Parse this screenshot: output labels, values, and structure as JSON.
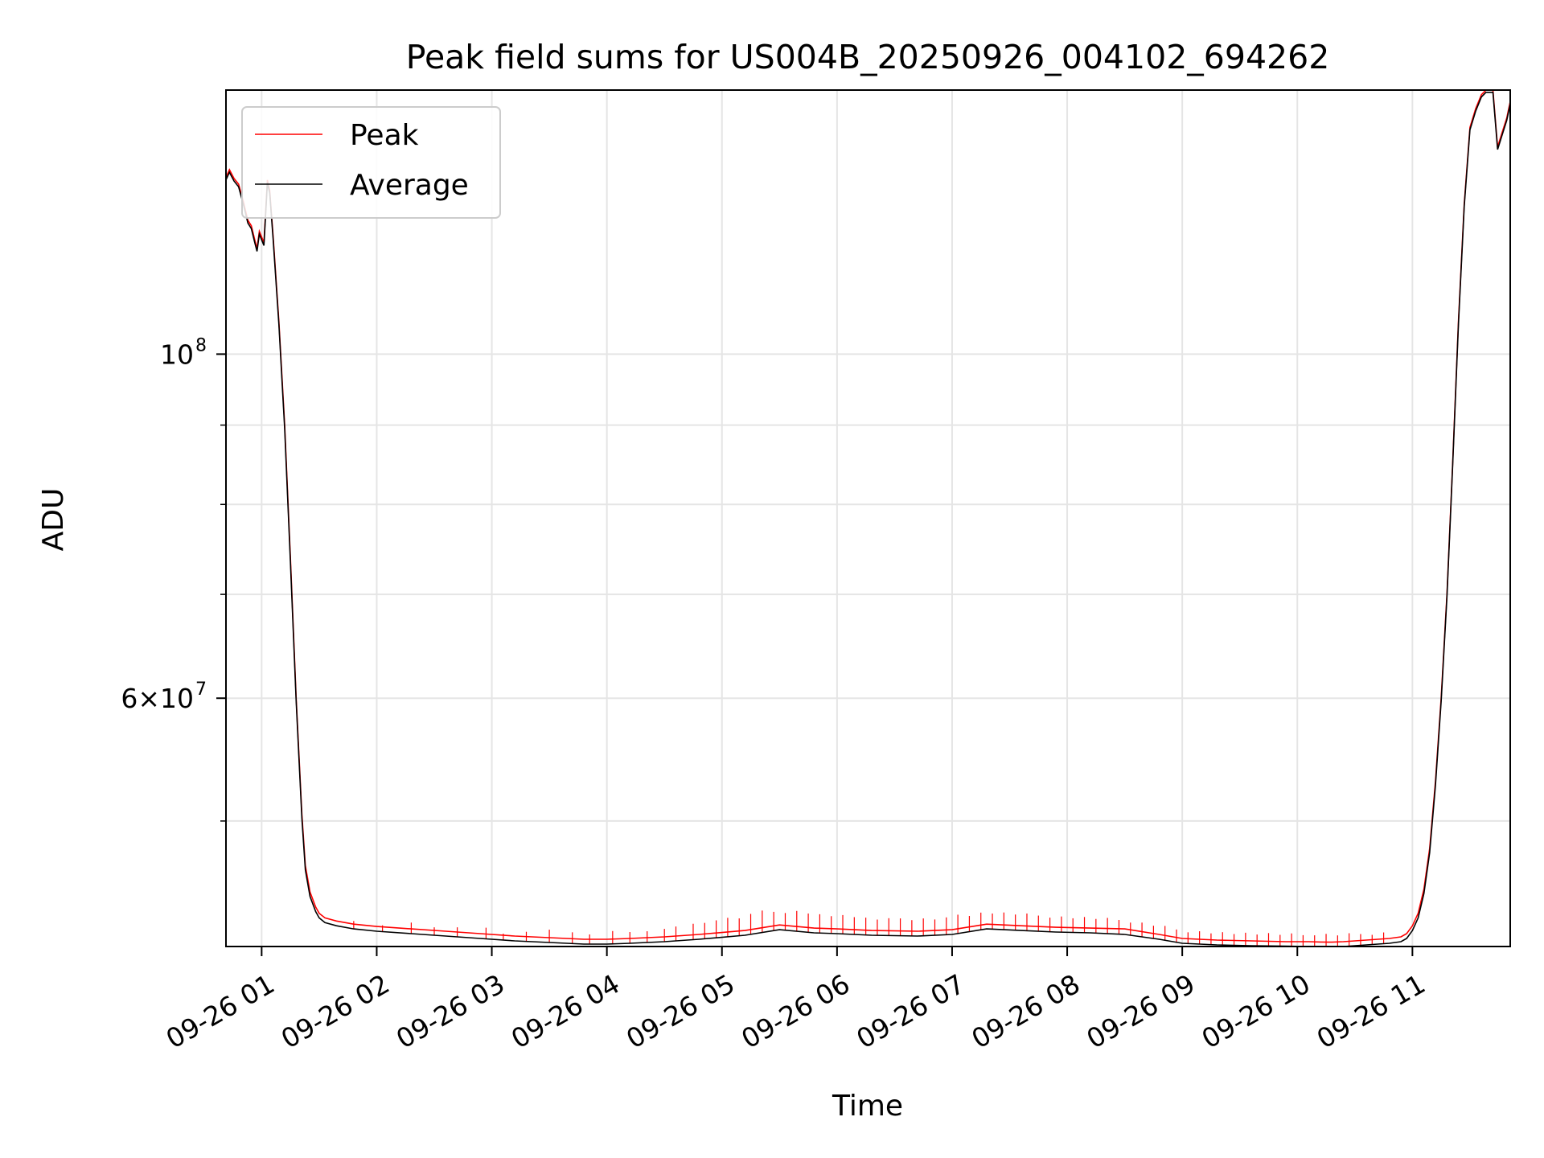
{
  "chart_data": {
    "type": "line",
    "title": "Peak field sums for US004B_20250926_004102_694262",
    "xlabel": "Time",
    "ylabel": "ADU",
    "yscale": "log",
    "x_unit": "hours after 09-26 00:00",
    "xlim": [
      0.69,
      11.85
    ],
    "ylim": [
      41500000,
      148000000
    ],
    "grid": true,
    "legend_position": "upper-left",
    "x_ticks": [
      {
        "value": 1,
        "label": "09-26 01"
      },
      {
        "value": 2,
        "label": "09-26 02"
      },
      {
        "value": 3,
        "label": "09-26 03"
      },
      {
        "value": 4,
        "label": "09-26 04"
      },
      {
        "value": 5,
        "label": "09-26 05"
      },
      {
        "value": 6,
        "label": "09-26 06"
      },
      {
        "value": 7,
        "label": "09-26 07"
      },
      {
        "value": 8,
        "label": "09-26 08"
      },
      {
        "value": 9,
        "label": "09-26 09"
      },
      {
        "value": 10,
        "label": "09-26 10"
      },
      {
        "value": 11,
        "label": "09-26 11"
      }
    ],
    "y_major_ticks": [
      {
        "value": 60000000,
        "mantissa": "6",
        "times": "×",
        "base": "10",
        "exp": "7"
      },
      {
        "value": 100000000,
        "mantissa": "",
        "times": "",
        "base": "10",
        "exp": "8"
      }
    ],
    "y_minor_ticks": [
      50000000,
      70000000,
      80000000,
      90000000
    ],
    "series": [
      {
        "name": "Peak",
        "color": "#ff0000",
        "x": [
          0.69,
          0.72,
          0.76,
          0.8,
          0.84,
          0.88,
          0.91,
          0.94,
          0.96,
          0.98,
          1.02,
          1.05,
          1.07,
          1.1,
          1.15,
          1.2,
          1.25,
          1.3,
          1.35,
          1.38,
          1.42,
          1.47,
          1.5,
          1.55,
          1.65,
          1.8,
          2.0,
          2.3,
          2.6,
          2.9,
          3.2,
          3.5,
          3.8,
          4.0,
          4.2,
          4.5,
          4.8,
          5.2,
          5.5,
          5.8,
          6.0,
          6.3,
          6.7,
          7.0,
          7.3,
          7.6,
          7.9,
          8.2,
          8.5,
          8.8,
          9.0,
          9.3,
          9.6,
          9.9,
          10.1,
          10.2,
          10.3,
          10.4,
          10.5,
          10.6,
          10.7,
          10.8,
          10.9,
          10.95,
          11.0,
          11.05,
          11.1,
          11.15,
          11.2,
          11.25,
          11.3,
          11.35,
          11.4,
          11.45,
          11.5,
          11.55,
          11.6,
          11.64,
          11.67,
          11.7,
          11.74,
          11.78,
          11.82,
          11.85
        ],
        "y": [
          130000000,
          131500000,
          129800000,
          128700000,
          125500000,
          122000000,
          121000000,
          118500000,
          117000000,
          120000000,
          118000000,
          129500000,
          127500000,
          119000000,
          105000000,
          90000000,
          74000000,
          60000000,
          50500000,
          46800000,
          45000000,
          44000000,
          43600000,
          43300000,
          43100000,
          42900000,
          42750000,
          42600000,
          42450000,
          42300000,
          42150000,
          42050000,
          41950000,
          41950000,
          42000000,
          42100000,
          42250000,
          42500000,
          42850000,
          42650000,
          42600000,
          42500000,
          42450000,
          42550000,
          42900000,
          42800000,
          42700000,
          42650000,
          42600000,
          42250000,
          42000000,
          41900000,
          41850000,
          41800000,
          41800000,
          41780000,
          41770000,
          41800000,
          41850000,
          41900000,
          41950000,
          42000000,
          42100000,
          42300000,
          42800000,
          43600000,
          45200000,
          48000000,
          53000000,
          60000000,
          70000000,
          85000000,
          105000000,
          125000000,
          140000000,
          144000000,
          147000000,
          148000000,
          148000000,
          148000000,
          136000000,
          139000000,
          142000000,
          145500000
        ]
      },
      {
        "name": "Average",
        "color": "#000000",
        "x": [
          0.69,
          0.72,
          0.76,
          0.8,
          0.84,
          0.88,
          0.91,
          0.94,
          0.96,
          0.98,
          1.02,
          1.05,
          1.07,
          1.1,
          1.15,
          1.2,
          1.25,
          1.3,
          1.35,
          1.38,
          1.42,
          1.47,
          1.5,
          1.55,
          1.65,
          1.8,
          2.0,
          2.3,
          2.6,
          2.9,
          3.2,
          3.5,
          3.8,
          4.0,
          4.2,
          4.5,
          4.8,
          5.2,
          5.5,
          5.8,
          6.0,
          6.3,
          6.7,
          7.0,
          7.3,
          7.6,
          7.9,
          8.2,
          8.5,
          8.8,
          9.0,
          9.3,
          9.6,
          9.9,
          10.1,
          10.2,
          10.3,
          10.4,
          10.5,
          10.6,
          10.7,
          10.8,
          10.9,
          10.95,
          11.0,
          11.05,
          11.1,
          11.15,
          11.2,
          11.25,
          11.3,
          11.35,
          11.4,
          11.45,
          11.5,
          11.55,
          11.6,
          11.64,
          11.67,
          11.7,
          11.74,
          11.78,
          11.82,
          11.85
        ],
        "y": [
          129500000,
          131000000,
          129300000,
          128200000,
          125000000,
          121500000,
          120500000,
          118000000,
          116500000,
          119500000,
          117500000,
          129000000,
          127000000,
          118500000,
          104500000,
          89500000,
          73500000,
          59700000,
          50200000,
          46500000,
          44700000,
          43700000,
          43300000,
          43000000,
          42800000,
          42600000,
          42450000,
          42300000,
          42150000,
          42000000,
          41850000,
          41750000,
          41650000,
          41650000,
          41700000,
          41800000,
          41950000,
          42200000,
          42550000,
          42350000,
          42300000,
          42200000,
          42150000,
          42250000,
          42600000,
          42500000,
          42400000,
          42350000,
          42250000,
          41950000,
          41700000,
          41600000,
          41550000,
          41520000,
          41500000,
          41490000,
          41480000,
          41500000,
          41550000,
          41600000,
          41650000,
          41700000,
          41800000,
          42000000,
          42500000,
          43300000,
          44900000,
          47700000,
          52700000,
          59700000,
          69700000,
          84700000,
          104500000,
          124500000,
          139500000,
          143500000,
          146500000,
          147500000,
          147500000,
          147500000,
          135500000,
          138500000,
          141500000,
          145000000
        ]
      }
    ],
    "peak_spikes": {
      "note": "Peak exceeds Average by intermittent spikes (ADU above average line)",
      "x": [
        1.8,
        2.05,
        2.3,
        2.5,
        2.7,
        2.95,
        3.1,
        3.3,
        3.5,
        3.7,
        3.85,
        4.05,
        4.2,
        4.35,
        4.5,
        4.6,
        4.75,
        4.85,
        4.95,
        5.05,
        5.15,
        5.25,
        5.35,
        5.45,
        5.55,
        5.65,
        5.75,
        5.85,
        5.95,
        6.05,
        6.15,
        6.25,
        6.35,
        6.45,
        6.55,
        6.65,
        6.75,
        6.85,
        6.95,
        7.05,
        7.15,
        7.25,
        7.35,
        7.45,
        7.55,
        7.65,
        7.75,
        7.85,
        7.95,
        8.05,
        8.15,
        8.25,
        8.35,
        8.45,
        8.55,
        8.65,
        8.75,
        8.85,
        8.95,
        9.05,
        9.15,
        9.25,
        9.35,
        9.45,
        9.55,
        9.65,
        9.75,
        9.85,
        9.95,
        10.05,
        10.15,
        10.25,
        10.35,
        10.45,
        10.55,
        10.65,
        10.75
      ],
      "heights": [
        500000,
        400000,
        700000,
        500000,
        600000,
        700000,
        400000,
        600000,
        800000,
        700000,
        600000,
        800000,
        700000,
        700000,
        800000,
        900000,
        1000000,
        1000000,
        1100000,
        1200000,
        1100000,
        1300000,
        1400000,
        1200000,
        1100000,
        1300000,
        1200000,
        1200000,
        1100000,
        1200000,
        1100000,
        1100000,
        1000000,
        1100000,
        1100000,
        1000000,
        1100000,
        1000000,
        1100000,
        1200000,
        1000000,
        1100000,
        1000000,
        1100000,
        1000000,
        1100000,
        1000000,
        900000,
        1000000,
        900000,
        1000000,
        900000,
        1000000,
        900000,
        800000,
        900000,
        800000,
        900000,
        800000,
        700000,
        800000,
        700000,
        800000,
        700000,
        800000,
        700000,
        800000,
        700000,
        800000,
        700000,
        700000,
        800000,
        700000,
        800000,
        700000,
        600000,
        700000
      ]
    }
  }
}
